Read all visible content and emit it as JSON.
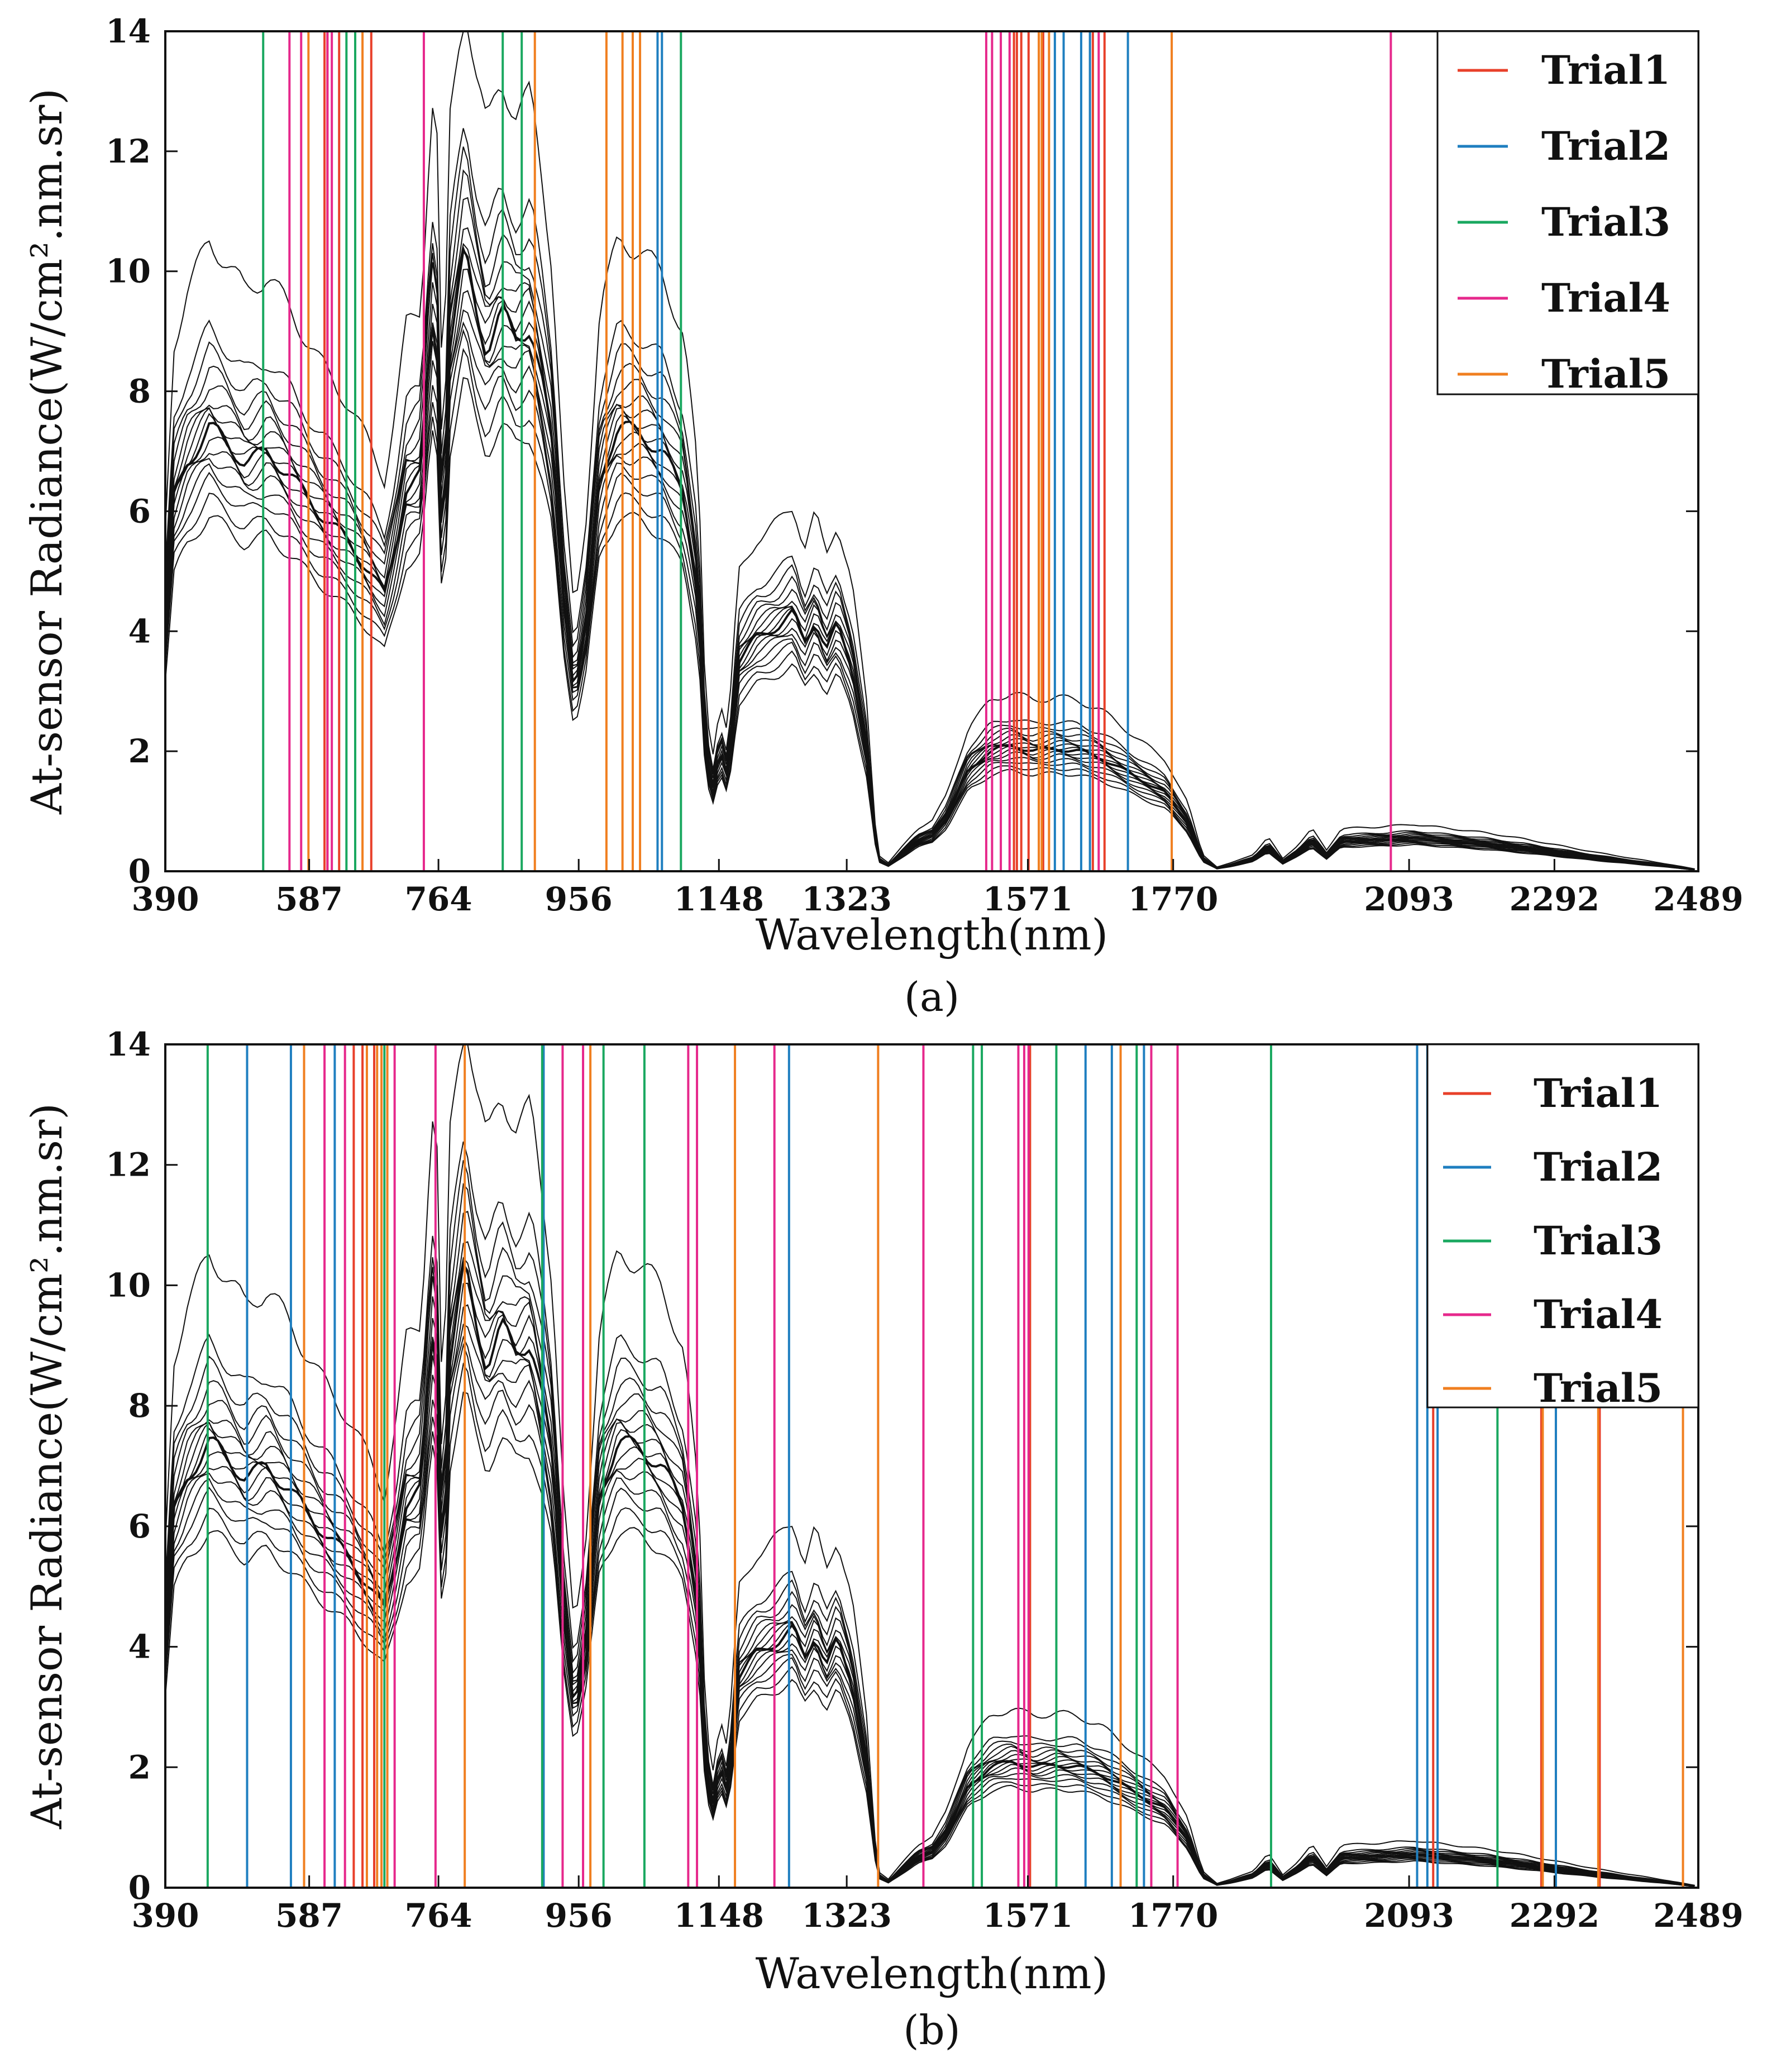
{
  "chart_data": [
    {
      "type": "line",
      "panel_label": "(a)",
      "xlabel": "Wavelength(nm)",
      "ylabel": "At-sensor Radiance(W/cm².nm.sr)",
      "xlim": [
        390,
        2489
      ],
      "ylim": [
        0,
        14
      ],
      "xticks": [
        390,
        587,
        764,
        956,
        1148,
        1323,
        1571,
        1770,
        2093,
        2292,
        2489
      ],
      "yticks": [
        0,
        2,
        4,
        6,
        8,
        10,
        12,
        14
      ],
      "grid": false,
      "legend_position": "top-right",
      "series": [
        {
          "name": "Trial1",
          "color": "#e8402a",
          "lines": [
            608,
            612,
            628,
            672,
            1552,
            1556,
            1562,
            1572,
            1592,
            1660,
            1676
          ]
        },
        {
          "name": "Trial2",
          "color": "#1f7fc0",
          "lines": [
            1064,
            1070,
            1608,
            1620,
            1644,
            1656,
            1708
          ]
        },
        {
          "name": "Trial3",
          "color": "#1aa860",
          "lines": [
            524,
            638,
            650,
            852,
            878,
            1096
          ]
        },
        {
          "name": "Trial4",
          "color": "#e6288c",
          "lines": [
            560,
            576,
            612,
            618,
            744,
            1514,
            1522,
            1534,
            1546,
            1668,
            2068
          ]
        },
        {
          "name": "Trial5",
          "color": "#f07f20",
          "lines": [
            586,
            660,
            896,
            994,
            1016,
            1030,
            1040,
            1586,
            1590,
            1600,
            1768
          ]
        }
      ]
    },
    {
      "type": "line",
      "panel_label": "(b)",
      "xlabel": "Wavelength(nm)",
      "ylabel": "At-sensor Radiance(W/cm².nm.sr)",
      "xlim": [
        390,
        2489
      ],
      "ylim": [
        0,
        14
      ],
      "xticks": [
        390,
        587,
        764,
        956,
        1148,
        1323,
        1571,
        1770,
        2093,
        2292,
        2489
      ],
      "yticks": [
        0,
        2,
        4,
        6,
        8,
        10,
        12,
        14
      ],
      "grid": false,
      "legend_position": "top-right",
      "series": [
        {
          "name": "Trial1",
          "color": "#e8402a",
          "lines": [
            648,
            660,
            676,
            1574,
            2126,
            2274,
            2294,
            2354
          ]
        },
        {
          "name": "Trial2",
          "color": "#1f7fc0",
          "lines": [
            502,
            562,
            622,
            908,
            1244,
            1650,
            1686,
            1730,
            2104,
            2118,
            2132,
            2294
          ]
        },
        {
          "name": "Trial3",
          "color": "#1aa860",
          "lines": [
            448,
            690,
            906,
            990,
            1046,
            1496,
            1508,
            1610,
            1720,
            1904,
            2214
          ]
        },
        {
          "name": "Trial4",
          "color": "#e6288c",
          "lines": [
            608,
            636,
            704,
            760,
            934,
            962,
            1106,
            1118,
            1224,
            1428,
            1558,
            1566,
            1572,
            1740,
            1776
          ]
        },
        {
          "name": "Trial5",
          "color": "#f07f20",
          "lines": [
            580,
            666,
            680,
            686,
            694,
            800,
            972,
            1170,
            1366,
            1698,
            2276,
            2352,
            2468
          ]
        }
      ]
    }
  ]
}
